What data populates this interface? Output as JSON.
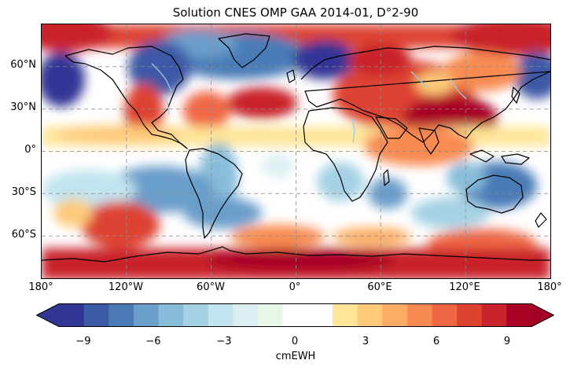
{
  "title": "Solution CNES OMP GAA 2014-01, D°2-90",
  "lat_ticks": [
    "60°N",
    "30°N",
    "0°",
    "30°S",
    "60°S"
  ],
  "lon_ticks": [
    "180°",
    "120°W",
    "60°W",
    "0°",
    "60°E",
    "120°E",
    "180°"
  ],
  "colorbar": {
    "label": "cmEWH",
    "ticks": [
      "−9",
      "−6",
      "−3",
      "0",
      "3",
      "6",
      "9"
    ],
    "range": [
      -10,
      10
    ],
    "colors": [
      "#313695",
      "#3c59a6",
      "#4a7bb7",
      "#6a9ecb",
      "#87bdd9",
      "#a5d1e4",
      "#c1e4ef",
      "#dbeff2",
      "#e8f6e8",
      "#ffffff",
      "#ffffff",
      "#fee597",
      "#fdca79",
      "#fcad64",
      "#f88b51",
      "#f06744",
      "#de4331",
      "#c9242b",
      "#a90426"
    ],
    "extend_min_color": "#313695",
    "extend_max_color": "#a50026"
  },
  "map": {
    "projection": "plate carree",
    "lon_range": [
      -180,
      180
    ],
    "lat_range": [
      -90,
      90
    ],
    "gridlines": true,
    "gridline_style": "dashed",
    "coastline_color": "#000000",
    "river_color": "#9ecae1",
    "field": "anomaly cmEWH"
  }
}
